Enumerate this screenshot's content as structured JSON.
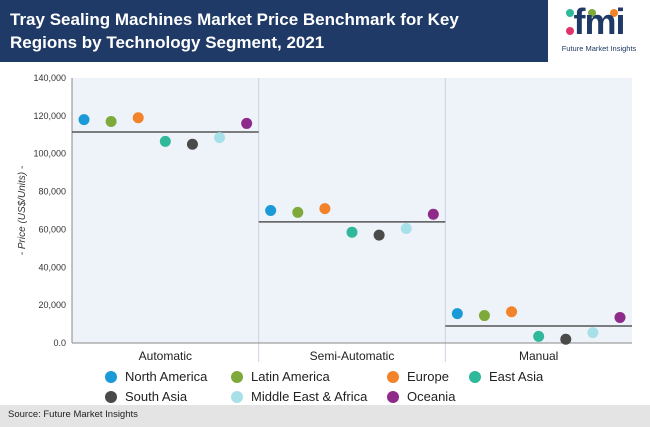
{
  "header": {
    "title": "Tray Sealing Machines Market Price Benchmark for Key Regions by Technology Segment, 2021",
    "logo_text": "fmi",
    "logo_subtitle": "Future Market Insights"
  },
  "source": "Source: Future Market Insights",
  "colors": {
    "header_bg": "#1f3a66",
    "panel_bg": "#eef2f9",
    "benchmark_line": "#555555"
  },
  "chart_data": {
    "type": "scatter",
    "title": "Tray Sealing Machines Market Price Benchmark for Key Regions by Technology Segment, 2021",
    "xlabel": "",
    "ylabel": "- Price (US$/Units) -",
    "ylim": [
      0,
      140000
    ],
    "yticks": [
      "0.0",
      "20,000",
      "40,000",
      "60,000",
      "80,000",
      "100,000",
      "120,000",
      "140,000"
    ],
    "ytick_values": [
      0,
      20000,
      40000,
      60000,
      80000,
      100000,
      120000,
      140000
    ],
    "categories": [
      "Automatic",
      "Semi-Automatic",
      "Manual"
    ],
    "benchmarks": [
      111500,
      64000,
      9000
    ],
    "series": [
      {
        "name": "North America",
        "color": "#1a9ad6",
        "values": [
          118000,
          70000,
          15500
        ]
      },
      {
        "name": "Latin America",
        "color": "#7daa3a",
        "values": [
          117000,
          69000,
          14500
        ]
      },
      {
        "name": "Europe",
        "color": "#f2832a",
        "values": [
          119000,
          71000,
          16500
        ]
      },
      {
        "name": "East Asia",
        "color": "#2fb89a",
        "values": [
          106500,
          58500,
          3500
        ]
      },
      {
        "name": "South Asia",
        "color": "#4a4a4a",
        "values": [
          105000,
          57000,
          2000
        ]
      },
      {
        "name": "Middle East & Africa",
        "color": "#a8e0ea",
        "values": [
          108500,
          60500,
          5500
        ]
      },
      {
        "name": "Oceania",
        "color": "#8e2a8a",
        "values": [
          116000,
          68000,
          13500
        ]
      }
    ],
    "grid": false,
    "legend": "bottom"
  }
}
